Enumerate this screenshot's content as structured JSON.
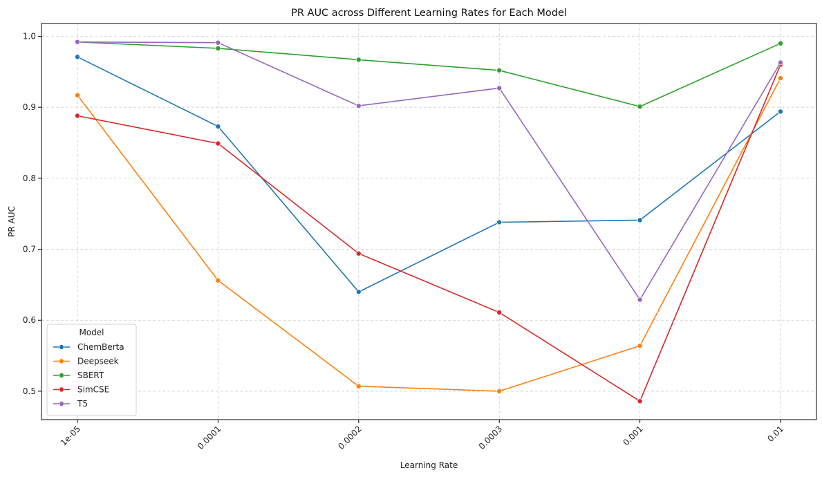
{
  "chart_data": {
    "type": "line",
    "title": "PR AUC across Different Learning Rates for Each Model",
    "xlabel": "Learning Rate",
    "ylabel": "PR AUC",
    "categories": [
      "1e-05",
      "0.0001",
      "0.0002",
      "0.0003",
      "0.001",
      "0.01"
    ],
    "ylim": [
      0.46,
      1.018
    ],
    "yticks": [
      "0.5",
      "0.6",
      "0.7",
      "0.8",
      "0.9",
      "1.0"
    ],
    "grid": true,
    "legend": {
      "title": "Model",
      "placement": "lower-left"
    },
    "series": [
      {
        "name": "ChemBerta",
        "color": "#1f77b4",
        "values": [
          0.971,
          0.873,
          0.64,
          0.738,
          0.741,
          0.894
        ]
      },
      {
        "name": "Deepseek",
        "color": "#ff7f0e",
        "values": [
          0.917,
          0.656,
          0.507,
          0.5,
          0.564,
          0.941
        ]
      },
      {
        "name": "SBERT",
        "color": "#2ca02c",
        "values": [
          0.992,
          0.983,
          0.967,
          0.952,
          0.901,
          0.99
        ]
      },
      {
        "name": "SimCSE",
        "color": "#d62728",
        "values": [
          0.888,
          0.849,
          0.694,
          0.611,
          0.486,
          0.96
        ]
      },
      {
        "name": "T5",
        "color": "#9467bd",
        "values": [
          0.992,
          0.991,
          0.902,
          0.927,
          0.629,
          0.963
        ]
      }
    ]
  }
}
